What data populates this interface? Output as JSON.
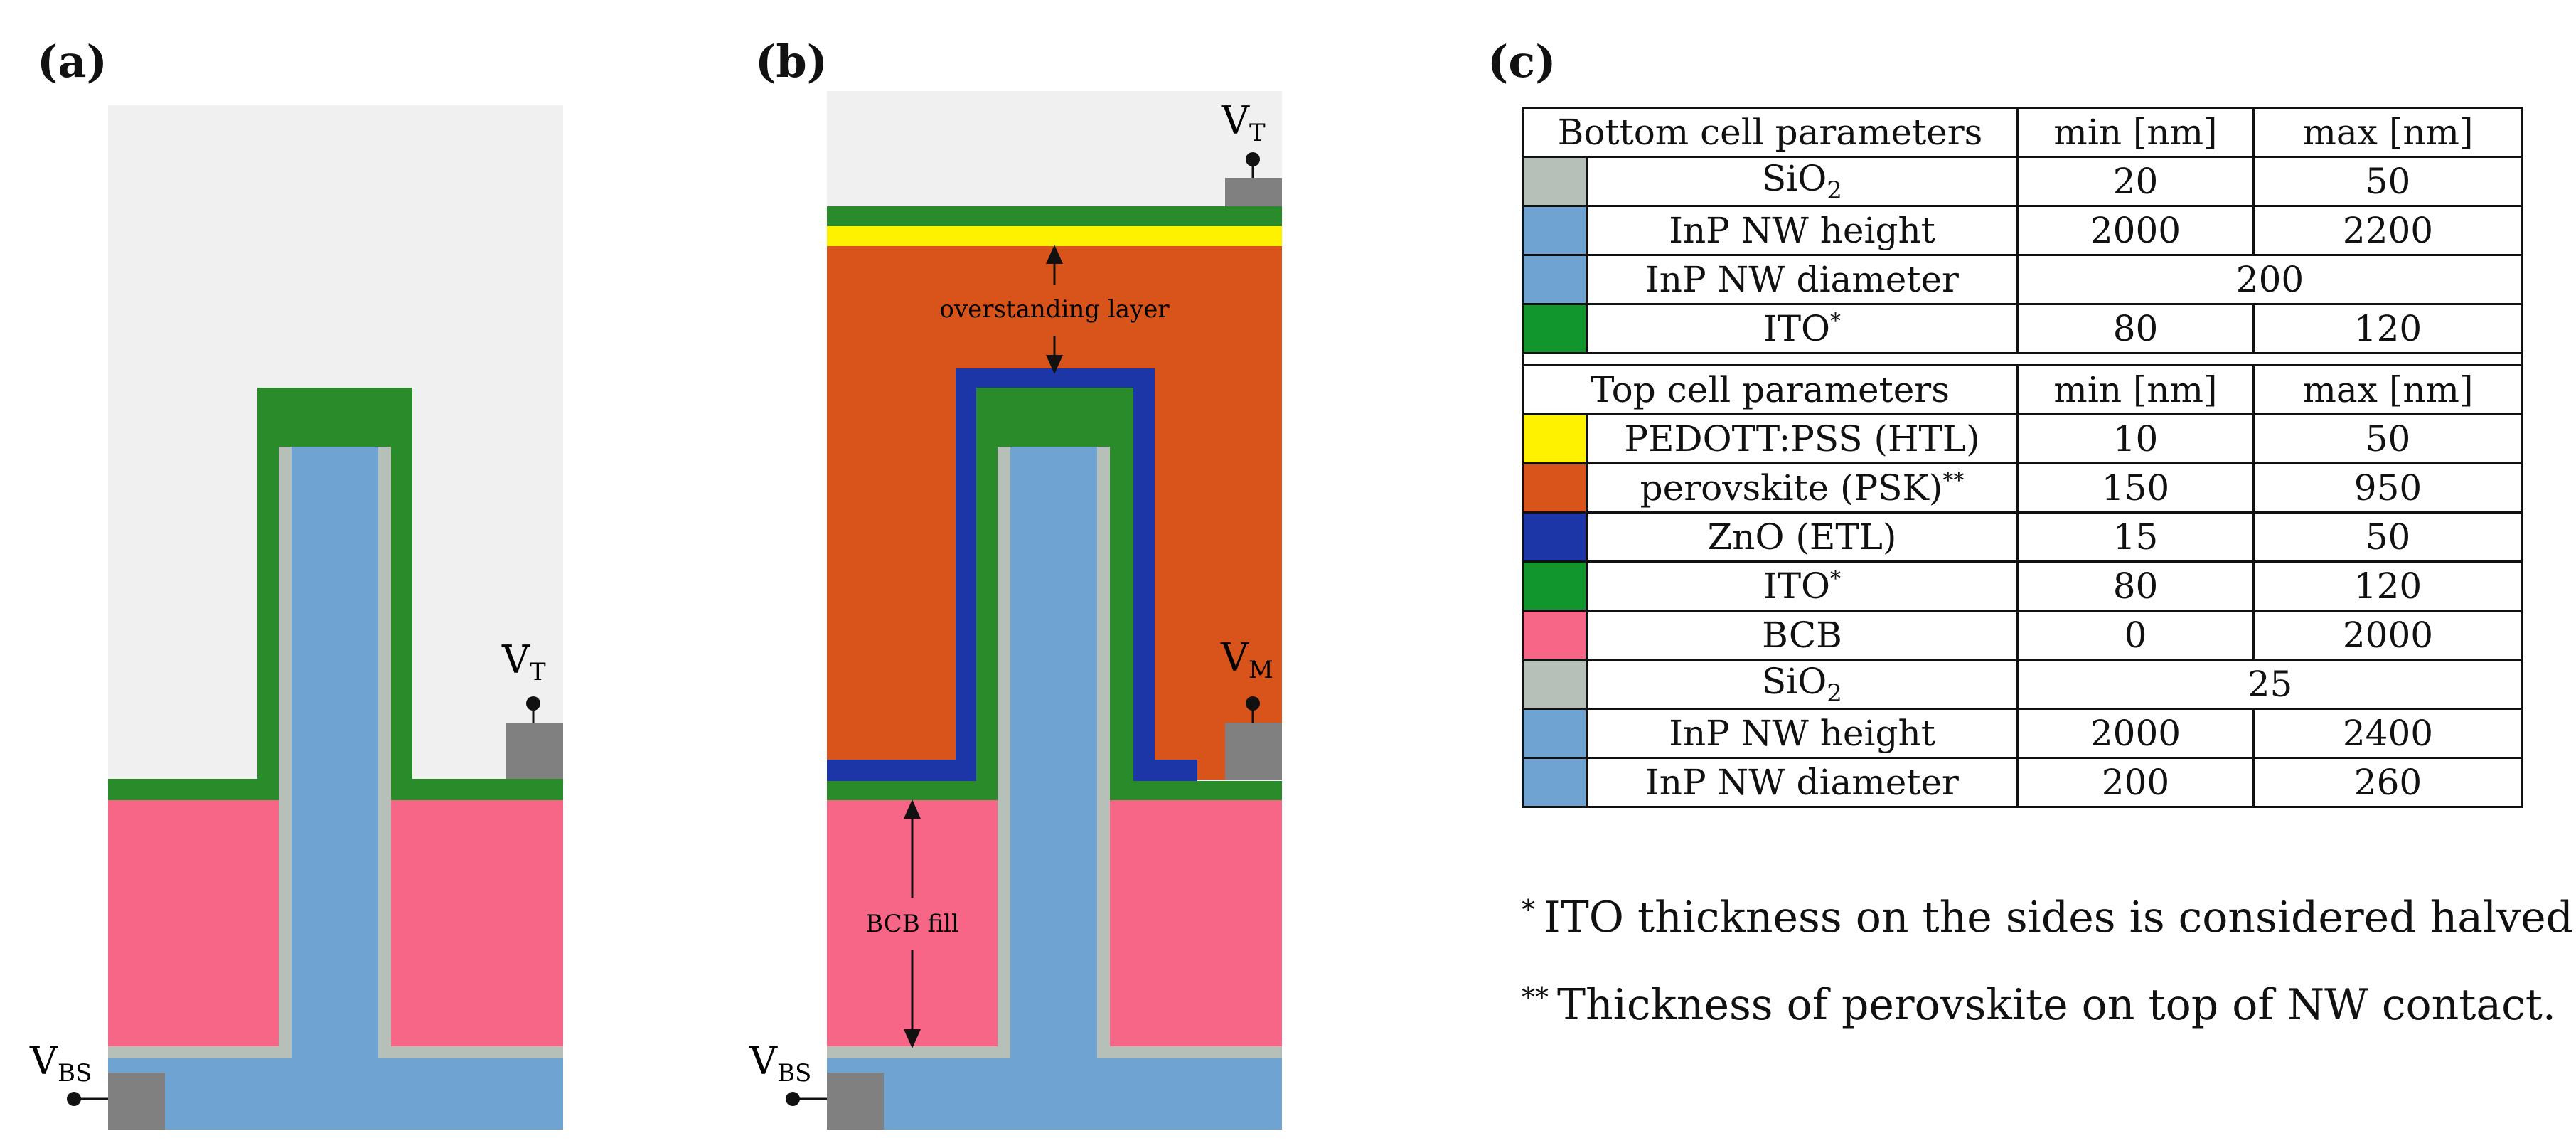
{
  "panels": {
    "a": {
      "label": "(a)"
    },
    "b": {
      "label": "(b)"
    },
    "c": {
      "label": "(c)"
    }
  },
  "diagram_a": {
    "terminal_top": {
      "main": "V",
      "sub": "T"
    },
    "terminal_bottom": {
      "main": "V",
      "sub": "BS"
    }
  },
  "diagram_b": {
    "terminal_top": {
      "main": "V",
      "sub": "T"
    },
    "terminal_mid": {
      "main": "V",
      "sub": "M"
    },
    "terminal_bottom": {
      "main": "V",
      "sub": "BS"
    },
    "overstanding_label": "overstanding layer",
    "bcb_label": "BCB fill"
  },
  "colors": {
    "background": "#f0f0f0",
    "nanowire": "#6fa3d2",
    "sio2": "#b6bfb8",
    "ito": "#2a8b2a",
    "bcb": "#f76587",
    "perovskite": "#d9541b",
    "pedot": "#fff200",
    "zno": "#1c36a8",
    "contact": "#808080"
  },
  "table": {
    "bottom_header": {
      "name": "Bottom cell parameters",
      "min": "min [nm]",
      "max": "max [nm]"
    },
    "bottom_rows": [
      {
        "color": "#b6bfb8",
        "name_main": "SiO",
        "name_sub": "2",
        "name_sup": "",
        "min": "20",
        "max": "50",
        "merged": ""
      },
      {
        "color": "#6fa3d2",
        "name_main": "InP NW height",
        "name_sub": "",
        "name_sup": "",
        "min": "2000",
        "max": "2200",
        "merged": ""
      },
      {
        "color": "#6fa3d2",
        "name_main": "InP NW diameter",
        "name_sub": "",
        "name_sup": "",
        "min": "",
        "max": "",
        "merged": "200"
      },
      {
        "color": "#11962e",
        "name_main": "ITO",
        "name_sub": "",
        "name_sup": "*",
        "min": "80",
        "max": "120",
        "merged": ""
      }
    ],
    "top_header": {
      "name": "Top cell parameters",
      "min": "min [nm]",
      "max": "max [nm]"
    },
    "top_rows": [
      {
        "color": "#fff200",
        "name_main": "PEDOTT:PSS (HTL)",
        "name_sub": "",
        "name_sup": "",
        "min": "10",
        "max": "50",
        "merged": ""
      },
      {
        "color": "#d9541b",
        "name_main": "perovskite (PSK)",
        "name_sub": "",
        "name_sup": "**",
        "min": "150",
        "max": "950",
        "merged": ""
      },
      {
        "color": "#1c36a8",
        "name_main": "ZnO (ETL)",
        "name_sub": "",
        "name_sup": "",
        "min": "15",
        "max": "50",
        "merged": ""
      },
      {
        "color": "#11962e",
        "name_main": "ITO",
        "name_sub": "",
        "name_sup": "*",
        "min": "80",
        "max": "120",
        "merged": ""
      },
      {
        "color": "#f76587",
        "name_main": "BCB",
        "name_sub": "",
        "name_sup": "",
        "min": "0",
        "max": "2000",
        "merged": ""
      },
      {
        "color": "#b6bfb8",
        "name_main": "SiO",
        "name_sub": "2",
        "name_sup": "",
        "min": "",
        "max": "",
        "merged": "25"
      },
      {
        "color": "#6fa3d2",
        "name_main": "InP NW height",
        "name_sub": "",
        "name_sup": "",
        "min": "2000",
        "max": "2400",
        "merged": ""
      },
      {
        "color": "#6fa3d2",
        "name_main": "InP NW diameter",
        "name_sub": "",
        "name_sup": "",
        "min": "200",
        "max": "260",
        "merged": ""
      }
    ]
  },
  "footnotes": [
    {
      "mark": "*",
      "text": "ITO thickness on the sides is considered halved"
    },
    {
      "mark": "**",
      "text": "Thickness of perovskite on top of NW contact."
    }
  ]
}
